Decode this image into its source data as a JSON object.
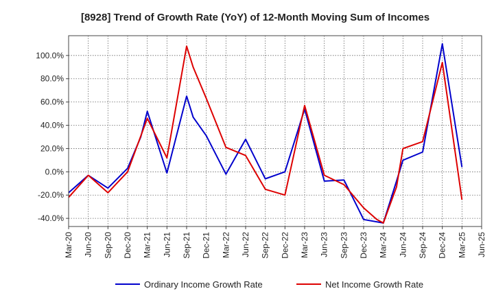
{
  "chart_data": {
    "type": "line",
    "title": "[8928]  Trend of Growth Rate (YoY) of 12-Month Moving Sum of Incomes",
    "xlabel": "",
    "ylabel": "",
    "ylim": [
      -47,
      117
    ],
    "grid": true,
    "legend_position": "bottom-center",
    "x": [
      "Mar-20",
      "Jun-20",
      "Sep-20",
      "Dec-20",
      "Mar-21",
      "Jun-21",
      "Sep-21",
      "Dec-21",
      "Mar-22",
      "Jun-22",
      "Sep-22",
      "Dec-22",
      "Mar-23",
      "Jun-23",
      "Sep-23",
      "Dec-23",
      "Mar-24",
      "Jun-24",
      "Sep-24",
      "Dec-24",
      "Mar-25",
      "Jun-25"
    ],
    "y_ticks": [
      -40,
      -20,
      0,
      20,
      40,
      60,
      80,
      100
    ],
    "y_tick_labels": [
      "-40.0%",
      "-20.0%",
      "0.0%",
      "20.0%",
      "40.0%",
      "60.0%",
      "80.0%",
      "100.0%"
    ],
    "series": [
      {
        "name": "Ordinary Income Growth Rate",
        "color": "#0000cc",
        "points": [
          [
            0,
            -18
          ],
          [
            1,
            -3
          ],
          [
            2,
            -14
          ],
          [
            3,
            3
          ],
          [
            3.67,
            30
          ],
          [
            4,
            52
          ],
          [
            5,
            -1
          ],
          [
            6,
            65
          ],
          [
            6.33,
            47
          ],
          [
            7,
            31
          ],
          [
            8,
            -2
          ],
          [
            9,
            28
          ],
          [
            10,
            -6
          ],
          [
            11,
            0
          ],
          [
            12,
            54
          ],
          [
            13,
            -8
          ],
          [
            14,
            -7
          ],
          [
            15,
            -41
          ],
          [
            16,
            -44
          ],
          [
            16.67,
            -8
          ],
          [
            17,
            10
          ],
          [
            18,
            17
          ],
          [
            19,
            110
          ],
          [
            20,
            4
          ]
        ]
      },
      {
        "name": "Net Income Growth Rate",
        "color": "#dd0000",
        "points": [
          [
            0,
            -22
          ],
          [
            1,
            -3
          ],
          [
            2,
            -18
          ],
          [
            3,
            0
          ],
          [
            4,
            46
          ],
          [
            5,
            12
          ],
          [
            6,
            108
          ],
          [
            6.33,
            90
          ],
          [
            7,
            63
          ],
          [
            8,
            21
          ],
          [
            9,
            14
          ],
          [
            10,
            -15
          ],
          [
            11,
            -20
          ],
          [
            12,
            57
          ],
          [
            13,
            -3
          ],
          [
            14,
            -11
          ],
          [
            15,
            -31
          ],
          [
            15.67,
            -41
          ],
          [
            16,
            -44
          ],
          [
            16.67,
            -13
          ],
          [
            17,
            20
          ],
          [
            18,
            26
          ],
          [
            19,
            94
          ],
          [
            20,
            -24
          ]
        ]
      }
    ]
  }
}
